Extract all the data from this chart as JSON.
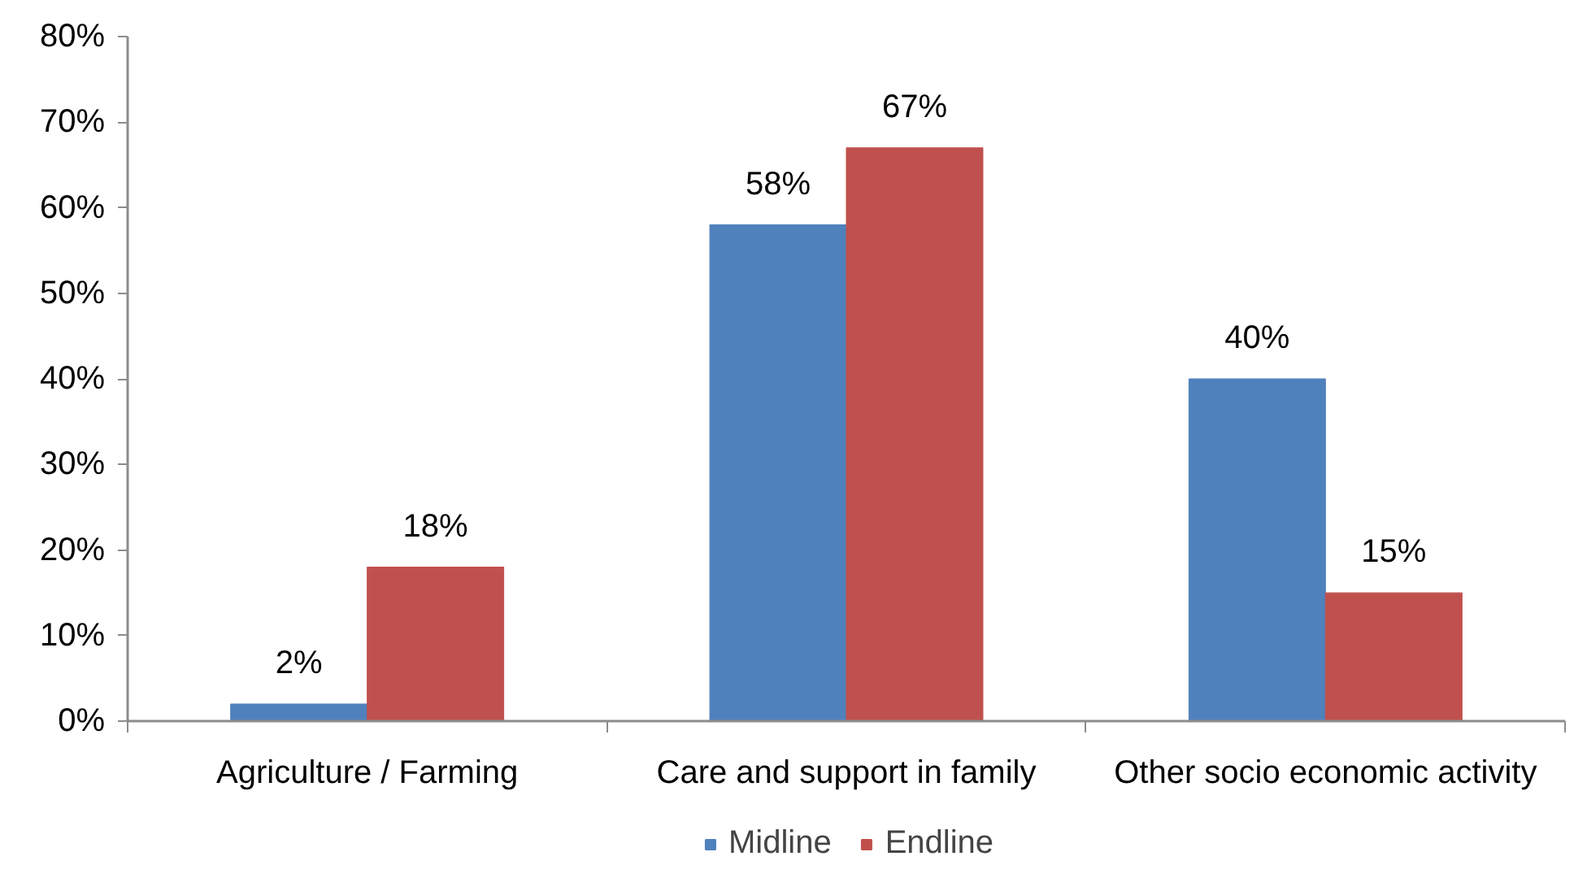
{
  "chart_data": {
    "type": "bar",
    "categories": [
      "Agriculture / Farming",
      "Care and support in family",
      "Other socio economic activity"
    ],
    "series": [
      {
        "name": "Midline",
        "color": "#4f81bd",
        "values": [
          2,
          58,
          40
        ],
        "value_labels": [
          "2%",
          "58%",
          "40%"
        ]
      },
      {
        "name": "Endline",
        "color": "#c0504d",
        "values": [
          18,
          67,
          15
        ],
        "value_labels": [
          "18%",
          "67%",
          "15%"
        ]
      }
    ],
    "ylim": [
      0,
      80
    ],
    "yticks": [
      {
        "value": 0,
        "label": "0%"
      },
      {
        "value": 10,
        "label": "10%"
      },
      {
        "value": 20,
        "label": "20%"
      },
      {
        "value": 30,
        "label": "30%"
      },
      {
        "value": 40,
        "label": "40%"
      },
      {
        "value": 50,
        "label": "50%"
      },
      {
        "value": 60,
        "label": "60%"
      },
      {
        "value": 70,
        "label": "70%"
      },
      {
        "value": 80,
        "label": "80%"
      }
    ],
    "legend": "bottom",
    "grid": false
  }
}
